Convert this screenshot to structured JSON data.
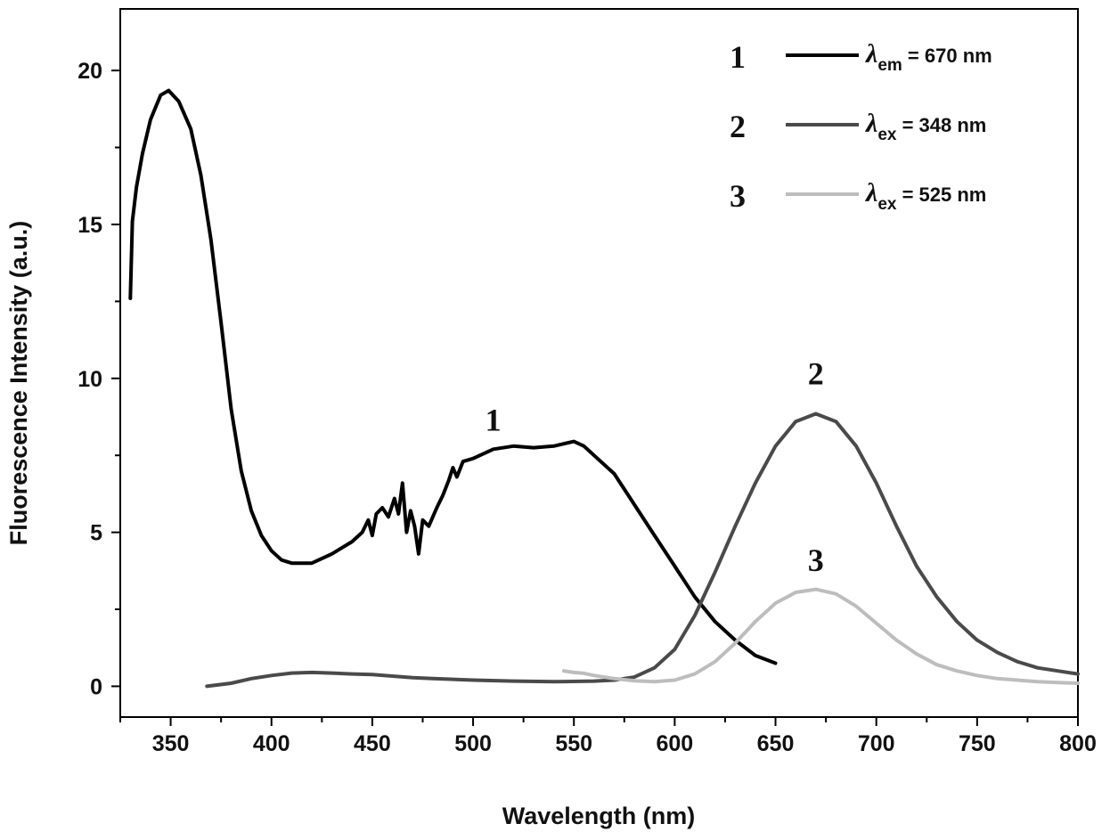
{
  "chart_data": {
    "type": "line",
    "xlabel": "Wavelength (nm)",
    "ylabel": "Fluorescence Intensity (a.u.)",
    "xlim": [
      325,
      800
    ],
    "ylim": [
      -1,
      22
    ],
    "x_ticks": [
      350,
      400,
      450,
      500,
      550,
      600,
      650,
      700,
      750,
      800
    ],
    "y_ticks": [
      0,
      5,
      10,
      15,
      20
    ],
    "grid": false,
    "legend_position": "top-right",
    "series": [
      {
        "label": "1",
        "legend_symbol": "λ",
        "legend_subscript": "em",
        "legend_value": " = 670 nm",
        "color": "#000000",
        "points": [
          [
            330,
            12.6
          ],
          [
            331,
            15.1
          ],
          [
            333,
            16.2
          ],
          [
            336,
            17.3
          ],
          [
            340,
            18.4
          ],
          [
            345,
            19.2
          ],
          [
            349,
            19.35
          ],
          [
            354,
            19.0
          ],
          [
            360,
            18.1
          ],
          [
            365,
            16.6
          ],
          [
            370,
            14.5
          ],
          [
            375,
            11.8
          ],
          [
            380,
            9.0
          ],
          [
            385,
            7.0
          ],
          [
            390,
            5.7
          ],
          [
            395,
            4.9
          ],
          [
            400,
            4.4
          ],
          [
            405,
            4.1
          ],
          [
            410,
            4.0
          ],
          [
            420,
            4.0
          ],
          [
            430,
            4.3
          ],
          [
            440,
            4.7
          ],
          [
            445,
            5.0
          ],
          [
            448,
            5.4
          ],
          [
            450,
            4.9
          ],
          [
            452,
            5.6
          ],
          [
            455,
            5.8
          ],
          [
            458,
            5.5
          ],
          [
            461,
            6.1
          ],
          [
            463,
            5.6
          ],
          [
            465,
            6.6
          ],
          [
            467,
            5.0
          ],
          [
            469,
            5.7
          ],
          [
            471,
            5.2
          ],
          [
            473,
            4.3
          ],
          [
            475,
            5.4
          ],
          [
            478,
            5.2
          ],
          [
            482,
            5.8
          ],
          [
            485,
            6.2
          ],
          [
            488,
            6.7
          ],
          [
            490,
            7.1
          ],
          [
            492,
            6.8
          ],
          [
            495,
            7.3
          ],
          [
            500,
            7.4
          ],
          [
            510,
            7.7
          ],
          [
            520,
            7.8
          ],
          [
            530,
            7.75
          ],
          [
            540,
            7.8
          ],
          [
            550,
            7.95
          ],
          [
            555,
            7.8
          ],
          [
            560,
            7.5
          ],
          [
            570,
            6.9
          ],
          [
            580,
            5.9
          ],
          [
            590,
            4.9
          ],
          [
            600,
            3.9
          ],
          [
            610,
            2.9
          ],
          [
            620,
            2.1
          ],
          [
            630,
            1.5
          ],
          [
            640,
            1.0
          ],
          [
            650,
            0.75
          ]
        ]
      },
      {
        "label": "2",
        "legend_symbol": "λ",
        "legend_subscript": "ex",
        "legend_value": " = 348 nm",
        "color": "#4a4a4a",
        "points": [
          [
            368,
            0.0
          ],
          [
            380,
            0.1
          ],
          [
            390,
            0.25
          ],
          [
            400,
            0.35
          ],
          [
            410,
            0.43
          ],
          [
            420,
            0.45
          ],
          [
            430,
            0.43
          ],
          [
            440,
            0.4
          ],
          [
            450,
            0.38
          ],
          [
            460,
            0.33
          ],
          [
            470,
            0.28
          ],
          [
            480,
            0.25
          ],
          [
            500,
            0.2
          ],
          [
            520,
            0.17
          ],
          [
            540,
            0.15
          ],
          [
            560,
            0.17
          ],
          [
            570,
            0.2
          ],
          [
            580,
            0.3
          ],
          [
            590,
            0.6
          ],
          [
            600,
            1.2
          ],
          [
            610,
            2.3
          ],
          [
            620,
            3.7
          ],
          [
            630,
            5.2
          ],
          [
            640,
            6.6
          ],
          [
            650,
            7.8
          ],
          [
            660,
            8.6
          ],
          [
            670,
            8.85
          ],
          [
            680,
            8.6
          ],
          [
            690,
            7.8
          ],
          [
            700,
            6.6
          ],
          [
            710,
            5.2
          ],
          [
            720,
            3.9
          ],
          [
            730,
            2.9
          ],
          [
            740,
            2.1
          ],
          [
            750,
            1.5
          ],
          [
            760,
            1.1
          ],
          [
            770,
            0.8
          ],
          [
            780,
            0.6
          ],
          [
            790,
            0.5
          ],
          [
            800,
            0.4
          ]
        ]
      },
      {
        "label": "3",
        "legend_symbol": "λ",
        "legend_subscript": "ex",
        "legend_value": " = 525 nm",
        "color": "#bdbdbd",
        "points": [
          [
            545,
            0.5
          ],
          [
            550,
            0.45
          ],
          [
            555,
            0.42
          ],
          [
            560,
            0.35
          ],
          [
            570,
            0.25
          ],
          [
            580,
            0.18
          ],
          [
            590,
            0.15
          ],
          [
            600,
            0.2
          ],
          [
            610,
            0.4
          ],
          [
            620,
            0.8
          ],
          [
            630,
            1.4
          ],
          [
            640,
            2.1
          ],
          [
            650,
            2.7
          ],
          [
            660,
            3.05
          ],
          [
            670,
            3.15
          ],
          [
            680,
            3.0
          ],
          [
            690,
            2.6
          ],
          [
            700,
            2.05
          ],
          [
            710,
            1.5
          ],
          [
            720,
            1.05
          ],
          [
            730,
            0.7
          ],
          [
            740,
            0.5
          ],
          [
            750,
            0.35
          ],
          [
            760,
            0.25
          ],
          [
            770,
            0.2
          ],
          [
            780,
            0.15
          ],
          [
            790,
            0.12
          ],
          [
            800,
            0.1
          ]
        ]
      }
    ],
    "annotations": [
      {
        "text": "1",
        "x": 510,
        "y": 8.3
      },
      {
        "text": "2",
        "x": 670,
        "y": 9.8
      },
      {
        "text": "3",
        "x": 670,
        "y": 3.75
      }
    ]
  }
}
